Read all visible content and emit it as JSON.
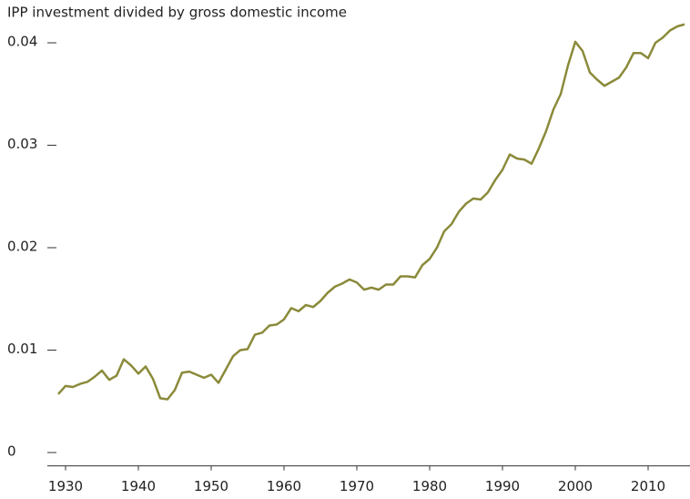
{
  "chart_data": {
    "type": "line",
    "title": "IPP investment divided by gross domestic income",
    "x": [
      1929,
      1930,
      1931,
      1932,
      1933,
      1934,
      1935,
      1936,
      1937,
      1938,
      1939,
      1940,
      1941,
      1942,
      1943,
      1944,
      1945,
      1946,
      1947,
      1948,
      1949,
      1950,
      1951,
      1952,
      1953,
      1954,
      1955,
      1956,
      1957,
      1958,
      1959,
      1960,
      1961,
      1962,
      1963,
      1964,
      1965,
      1966,
      1967,
      1968,
      1969,
      1970,
      1971,
      1972,
      1973,
      1974,
      1975,
      1976,
      1977,
      1978,
      1979,
      1980,
      1981,
      1982,
      1983,
      1984,
      1985,
      1986,
      1987,
      1988,
      1989,
      1990,
      1991,
      1992,
      1993,
      1994,
      1995,
      1996,
      1997,
      1998,
      1999,
      2000,
      2001,
      2002,
      2003,
      2004,
      2005,
      2006,
      2007,
      2008,
      2009,
      2010,
      2011,
      2012,
      2013,
      2014,
      2015
    ],
    "series": [
      {
        "name": "IPP investment / GDI",
        "color": "#8a8a3a",
        "values": [
          0.0057,
          0.0065,
          0.0064,
          0.0067,
          0.0069,
          0.0074,
          0.008,
          0.0071,
          0.0075,
          0.0091,
          0.0085,
          0.0077,
          0.0084,
          0.0072,
          0.0053,
          0.0052,
          0.0061,
          0.0078,
          0.0079,
          0.0076,
          0.0073,
          0.0076,
          0.0068,
          0.0081,
          0.0094,
          0.01,
          0.0101,
          0.0115,
          0.0117,
          0.0124,
          0.0125,
          0.013,
          0.0141,
          0.0138,
          0.0144,
          0.0142,
          0.0148,
          0.0156,
          0.0162,
          0.0165,
          0.0169,
          0.0166,
          0.0159,
          0.0161,
          0.0159,
          0.0164,
          0.0164,
          0.0172,
          0.0172,
          0.0171,
          0.0183,
          0.0189,
          0.02,
          0.0216,
          0.0223,
          0.0235,
          0.0243,
          0.0248,
          0.0247,
          0.0254,
          0.0266,
          0.0276,
          0.0291,
          0.0287,
          0.0286,
          0.0282,
          0.0297,
          0.0314,
          0.0335,
          0.035,
          0.0378,
          0.0401,
          0.0392,
          0.0371,
          0.0364,
          0.0358,
          0.0362,
          0.0366,
          0.0376,
          0.039,
          0.039,
          0.0385,
          0.04,
          0.0405,
          0.0412,
          0.0416,
          0.0418
        ]
      }
    ],
    "xlim": [
      1927.5,
      2015.5
    ],
    "xticks": [
      1930,
      1940,
      1950,
      1960,
      1970,
      1980,
      1990,
      2000,
      2010
    ],
    "ylim": [
      -0.0013,
      0.042
    ],
    "yticks": [
      0,
      0.01,
      0.02,
      0.03,
      0.04
    ]
  }
}
